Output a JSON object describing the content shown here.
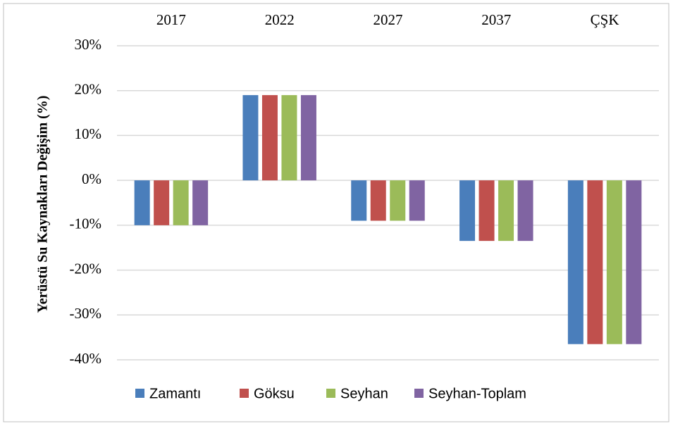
{
  "chart_data": {
    "type": "bar",
    "y_label": "Yerüstü Su Kaynakları Değişim (%)",
    "categories": [
      "2017",
      "2022",
      "2027",
      "2037",
      "ÇŞK"
    ],
    "series": [
      {
        "name": "Zamantı",
        "color": "#4a7ebb",
        "values": [
          -10,
          19,
          -9,
          -13.5,
          -36.5
        ]
      },
      {
        "name": "Göksu",
        "color": "#c0504d",
        "values": [
          -10,
          19,
          -9,
          -13.5,
          -36.5
        ]
      },
      {
        "name": "Seyhan",
        "color": "#9bbb59",
        "values": [
          -10,
          19,
          -9,
          -13.5,
          -36.5
        ]
      },
      {
        "name": "Seyhan-Toplam",
        "color": "#8064a2",
        "values": [
          -10,
          19,
          -9,
          -13.5,
          -36.5
        ]
      }
    ],
    "ylim": [
      -40,
      30
    ],
    "yticks": [
      {
        "value": -40,
        "label": "-40%"
      },
      {
        "value": -30,
        "label": "-30%"
      },
      {
        "value": -20,
        "label": "-20%"
      },
      {
        "value": -10,
        "label": "-10%"
      },
      {
        "value": 0,
        "label": "0%"
      },
      {
        "value": 10,
        "label": "10%"
      },
      {
        "value": 20,
        "label": "20%"
      },
      {
        "value": 30,
        "label": "30%"
      }
    ],
    "grid": true
  }
}
